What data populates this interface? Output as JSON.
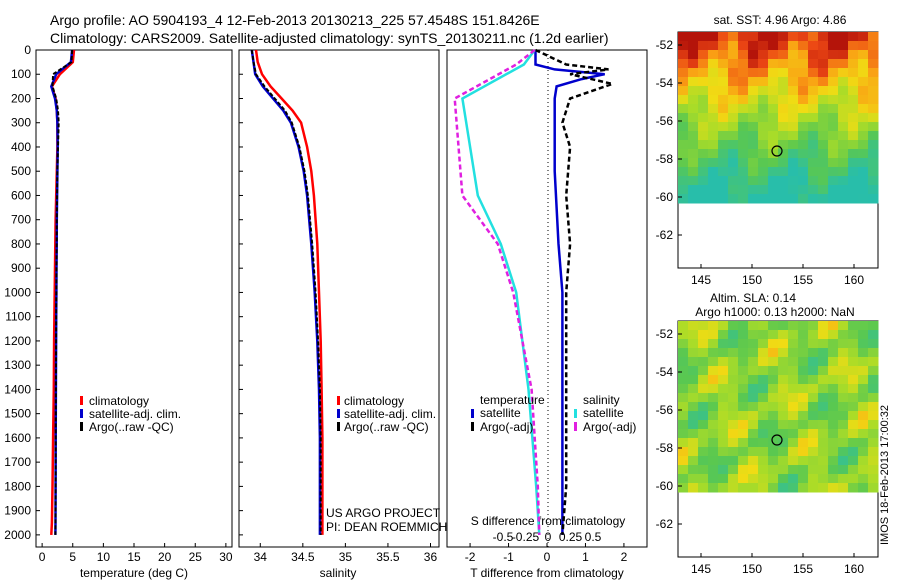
{
  "header": {
    "line1": "Argo profile: AO 5904193_4 12-Feb-2013 20130213_225 57.4548S 151.8426E",
    "line2": "Climatology: CARS2009. Satellite-adjusted climatology: synTS_20130211.nc (1.2d earlier)"
  },
  "colors": {
    "climatology": "#ff0000",
    "satellite": "#0000cc",
    "argo": "#000000",
    "sat_salinity": "#22e0e0",
    "argo_salinity": "#e020e0"
  },
  "depth_ticks": [
    "0",
    "100",
    "200",
    "300",
    "400",
    "500",
    "600",
    "700",
    "800",
    "900",
    "1000",
    "1100",
    "1200",
    "1300",
    "1400",
    "1500",
    "1600",
    "1700",
    "1800",
    "1900",
    "2000"
  ],
  "temp_panel": {
    "xlabel": "temperature (deg C)",
    "xticks": [
      "0",
      "5",
      "10",
      "15",
      "20",
      "25",
      "30"
    ],
    "legend": [
      "climatology",
      "satellite-adj. clim.",
      "Argo(..raw -QC)"
    ]
  },
  "sal_panel": {
    "xlabel": "salinity",
    "xticks": [
      "34",
      "34.5",
      "35",
      "35.5",
      "36"
    ],
    "legend": [
      "climatology",
      "satellite-adj. clim.",
      "Argo(..raw -QC)"
    ],
    "credit1": "US ARGO PROJECT",
    "credit2": "PI: DEAN ROEMMICH"
  },
  "diff_panel": {
    "xlabel": "T difference from climatology",
    "xticks": [
      "-2",
      "-1",
      "0",
      "1",
      "2"
    ],
    "s_label": "S difference from climatology",
    "s_ticks": [
      "-0.5",
      "-0.25",
      "0",
      "0.25",
      "0.5"
    ],
    "legend_temp_title": "temperature",
    "legend_temp": [
      "satellite",
      "Argo(-adj)"
    ],
    "legend_sal_title": "salinity",
    "legend_sal": [
      "satellite",
      "Argo(-adj)"
    ]
  },
  "map_sst": {
    "title": "sat. SST: 4.96  Argo: 4.86",
    "yticks": [
      "-52",
      "-54",
      "-56",
      "-58",
      "-60",
      "-62"
    ],
    "xticks": [
      "145",
      "150",
      "155",
      "160"
    ]
  },
  "map_sla": {
    "title1": "Altim. SLA: 0.14",
    "title2": "Argo h1000: 0.13  h2000: NaN",
    "yticks": [
      "-52",
      "-54",
      "-56",
      "-58",
      "-60",
      "-62"
    ],
    "xticks": [
      "145",
      "150",
      "155",
      "160"
    ]
  },
  "side_stamp": "IMOS 18-Feb-2013 17:00:32",
  "chart_data": [
    {
      "type": "line",
      "name": "temperature profile",
      "xlabel": "temperature (deg C)",
      "ylabel": "",
      "xlim": [
        -1,
        31
      ],
      "ylim": [
        2050,
        0
      ],
      "series": [
        {
          "name": "climatology",
          "x": [
            5.2,
            5.0,
            2.9,
            1.6,
            2.2,
            2.4,
            2.5,
            2.5,
            2.4,
            2.3,
            2.2,
            2.15,
            2.1,
            2.05,
            2.0,
            1.95,
            1.9,
            1.8,
            1.7,
            1.6,
            1.5
          ],
          "y": [
            0,
            50,
            100,
            150,
            200,
            250,
            300,
            400,
            500,
            600,
            700,
            800,
            900,
            1000,
            1100,
            1200,
            1400,
            1600,
            1800,
            1950,
            2000
          ]
        },
        {
          "name": "satellite-adj. clim.",
          "x": [
            4.9,
            4.7,
            2.3,
            1.5,
            2.1,
            2.4,
            2.5,
            2.55,
            2.5,
            2.45,
            2.4,
            2.38,
            2.35,
            2.33,
            2.3,
            2.28,
            2.25,
            2.22,
            2.2,
            2.18,
            2.17
          ],
          "y": [
            0,
            50,
            100,
            150,
            200,
            250,
            300,
            400,
            500,
            600,
            700,
            800,
            900,
            1000,
            1100,
            1200,
            1400,
            1600,
            1800,
            1950,
            2000
          ]
        },
        {
          "name": "Argo(..raw -QC)",
          "x": [
            4.9,
            4.8,
            1.8,
            1.7,
            2.3,
            2.6,
            2.7,
            2.6,
            2.5,
            2.45,
            2.4,
            2.38,
            2.35,
            2.33,
            2.3,
            2.28,
            2.25,
            2.22,
            2.2,
            2.18,
            2.17
          ],
          "y": [
            0,
            50,
            100,
            150,
            200,
            250,
            300,
            400,
            500,
            600,
            700,
            800,
            900,
            1000,
            1100,
            1200,
            1400,
            1600,
            1800,
            1950,
            2000
          ]
        }
      ]
    },
    {
      "type": "line",
      "name": "salinity profile",
      "xlabel": "salinity",
      "ylabel": "",
      "xlim": [
        33.75,
        36.1
      ],
      "ylim": [
        2050,
        0
      ],
      "series": [
        {
          "name": "climatology",
          "x": [
            33.95,
            33.97,
            34.02,
            34.12,
            34.25,
            34.38,
            34.48,
            34.55,
            34.6,
            34.63,
            34.67,
            34.69,
            34.71,
            34.72,
            34.73,
            34.73,
            34.73,
            34.73
          ],
          "y": [
            0,
            50,
            100,
            150,
            200,
            250,
            300,
            400,
            500,
            600,
            800,
            1000,
            1200,
            1400,
            1600,
            1800,
            1950,
            2000
          ]
        },
        {
          "name": "satellite-adj. clim.",
          "x": [
            33.9,
            33.92,
            33.94,
            34.03,
            34.15,
            34.27,
            34.36,
            34.45,
            34.51,
            34.55,
            34.6,
            34.64,
            34.67,
            34.69,
            34.7,
            34.7,
            34.7,
            34.7
          ],
          "y": [
            0,
            50,
            100,
            150,
            200,
            250,
            300,
            400,
            500,
            600,
            800,
            1000,
            1200,
            1400,
            1600,
            1800,
            1950,
            2000
          ]
        },
        {
          "name": "Argo(..raw -QC)",
          "x": [
            33.9,
            33.92,
            33.95,
            34.05,
            34.17,
            34.29,
            34.37,
            34.46,
            34.52,
            34.56,
            34.61,
            34.65,
            34.68,
            34.7,
            34.71,
            34.71,
            34.71,
            34.71
          ],
          "y": [
            0,
            50,
            100,
            150,
            200,
            250,
            300,
            400,
            500,
            600,
            800,
            1000,
            1200,
            1400,
            1600,
            1800,
            1950,
            2000
          ]
        }
      ]
    },
    {
      "type": "line",
      "name": "difference from climatology",
      "xlabel": "T difference from climatology",
      "ylabel": "",
      "xlim": [
        -2.6,
        2.6
      ],
      "ylim": [
        2050,
        0
      ],
      "series": [
        {
          "name": "temperature satellite",
          "x": [
            -0.3,
            -0.3,
            0.2,
            1.5,
            0.9,
            0.25,
            0.2,
            0.2,
            0.2,
            0.3,
            0.4,
            0.4,
            0.4,
            0.4,
            0.4
          ],
          "y": [
            0,
            60,
            80,
            100,
            120,
            150,
            200,
            300,
            500,
            800,
            1000,
            1200,
            1500,
            1800,
            2000
          ]
        },
        {
          "name": "temperature Argo(-adj)",
          "x": [
            -0.3,
            0.5,
            1.6,
            0.6,
            1.7,
            0.6,
            0.4,
            0.6,
            0.5,
            0.6,
            0.5,
            0.5,
            0.5,
            0.5,
            0.4
          ],
          "y": [
            0,
            60,
            80,
            100,
            140,
            200,
            300,
            400,
            600,
            800,
            1000,
            1200,
            1500,
            1800,
            2000
          ]
        },
        {
          "name": "salinity satellite",
          "x": [
            -0.08,
            -0.15,
            -0.55,
            -0.45,
            -0.3,
            -0.2,
            -0.12,
            -0.07,
            -0.05
          ],
          "y": [
            0,
            60,
            200,
            600,
            800,
            1000,
            1400,
            1800,
            2000
          ]
        },
        {
          "name": "salinity Argo(-adj)",
          "x": [
            -0.08,
            -0.2,
            -0.6,
            -0.55,
            -0.32,
            -0.22,
            -0.1,
            -0.06,
            -0.05
          ],
          "y": [
            0,
            60,
            200,
            600,
            800,
            1000,
            1400,
            1800,
            2000
          ]
        }
      ]
    }
  ]
}
